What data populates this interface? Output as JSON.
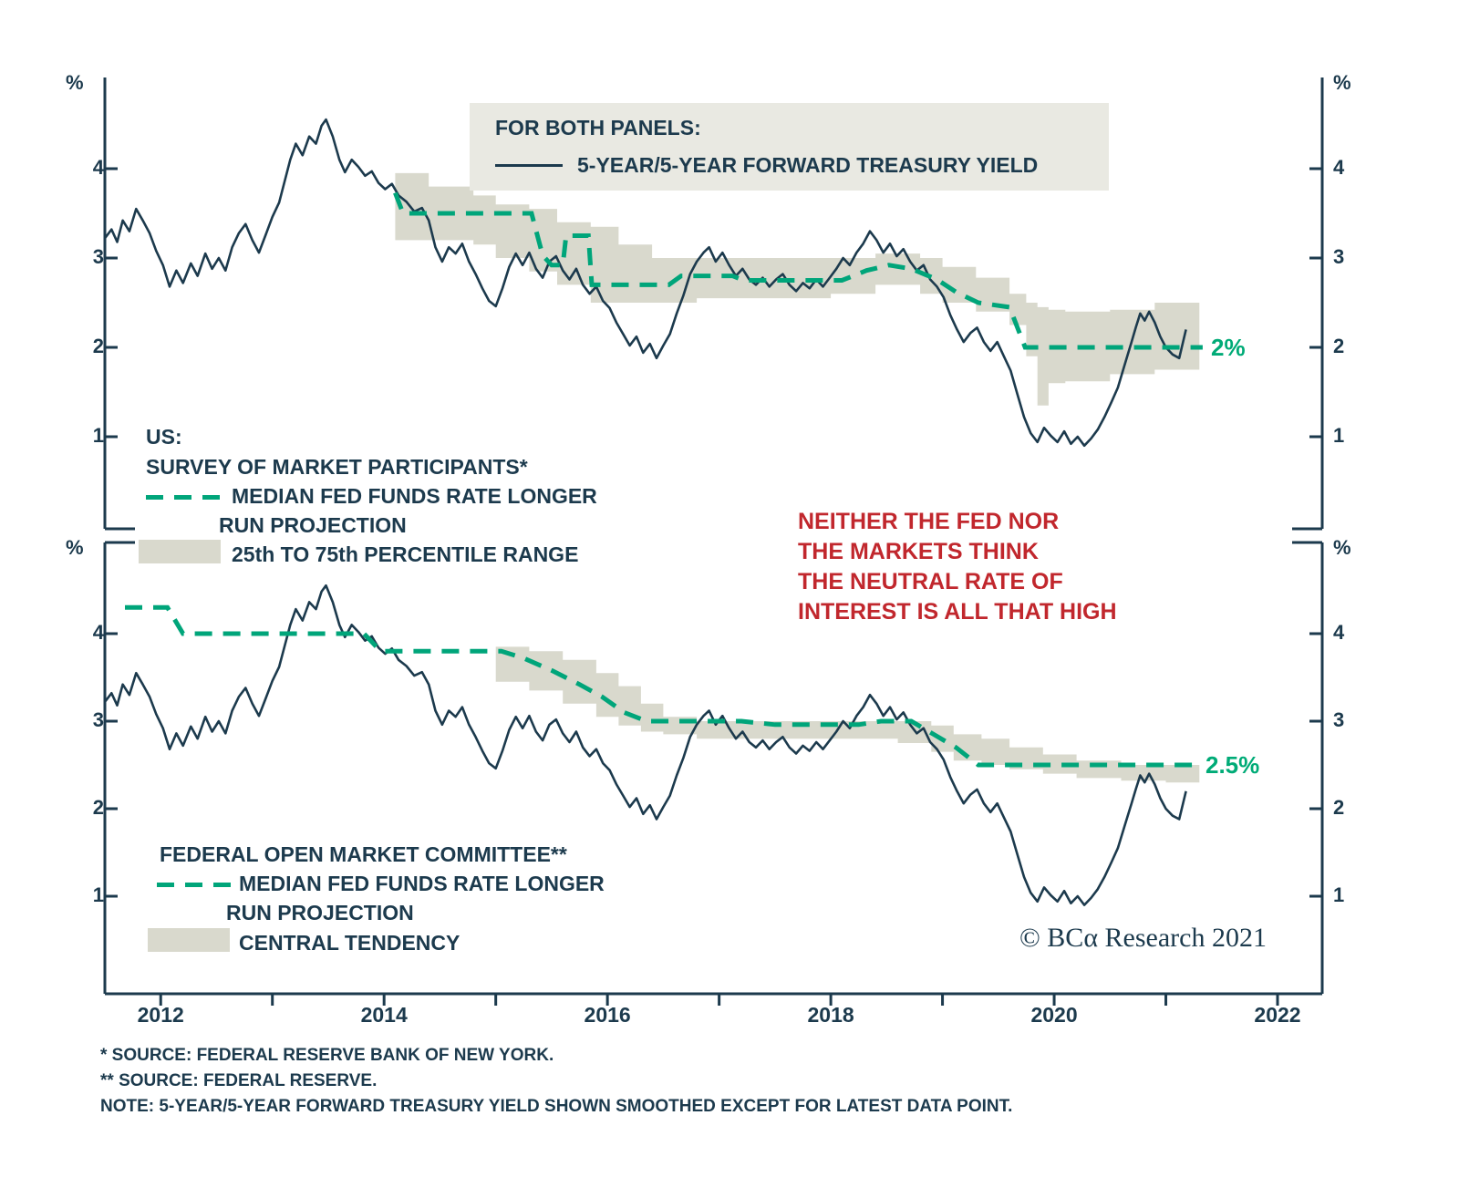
{
  "colors": {
    "navy": "#1c3a4d",
    "green": "#00a57a",
    "green_label": "#00ab77",
    "band": "#d9d9cd",
    "red": "#c1272d",
    "legend_bg": "#e9e9e2"
  },
  "legend_box": {
    "title": "FOR BOTH PANELS:",
    "series_label": "5-YEAR/5-YEAR FORWARD TREASURY YIELD"
  },
  "top_panel": {
    "legend": {
      "region": "US:",
      "survey": "SURVEY OF MARKET PARTICIPANTS*",
      "median_line1": "MEDIAN FED FUNDS RATE LONGER",
      "median_line2": "RUN PROJECTION",
      "band_label": "25th TO 75th PERCENTILE RANGE"
    },
    "end_label": "2%"
  },
  "bottom_panel": {
    "legend": {
      "committee": "FEDERAL OPEN MARKET COMMITTEE**",
      "median_line1": "MEDIAN FED FUNDS RATE LONGER",
      "median_line2": "RUN PROJECTION",
      "band_label": "CENTRAL TENDENCY"
    },
    "end_label": "2.5%"
  },
  "annotation": {
    "lines": [
      "NEITHER THE FED NOR",
      "THE MARKETS THINK",
      "THE NEUTRAL RATE OF",
      "INTEREST IS ALL THAT HIGH"
    ]
  },
  "copyright": {
    "text": "© BCα Research 2021"
  },
  "footnotes": [
    "*  SOURCE: FEDERAL RESERVE BANK OF NEW YORK.",
    "** SOURCE: FEDERAL RESERVE.",
    "NOTE: 5-YEAR/5-YEAR FORWARD TREASURY YIELD SHOWN SMOOTHED EXCEPT FOR LATEST DATA POINT."
  ],
  "axes": {
    "y_unit": "%",
    "y_ticks": [
      4,
      3,
      2,
      1
    ],
    "x_labels": [
      "2012",
      "2014",
      "2016",
      "2018",
      "2020",
      "2022"
    ]
  },
  "chart_data": {
    "type": "line",
    "x_unit": "year",
    "xlim": [
      2011.5,
      2022.4
    ],
    "ylim": [
      0,
      5
    ],
    "grid": false,
    "shared_series": {
      "name": "5-YEAR/5-YEAR FORWARD TREASURY YIELD",
      "style": "solid",
      "color_key": "navy",
      "points": [
        [
          2011.5,
          3.22
        ],
        [
          2011.56,
          3.32
        ],
        [
          2011.61,
          3.18
        ],
        [
          2011.66,
          3.42
        ],
        [
          2011.72,
          3.3
        ],
        [
          2011.78,
          3.55
        ],
        [
          2011.84,
          3.42
        ],
        [
          2011.9,
          3.28
        ],
        [
          2011.96,
          3.08
        ],
        [
          2012.02,
          2.92
        ],
        [
          2012.08,
          2.68
        ],
        [
          2012.14,
          2.86
        ],
        [
          2012.2,
          2.72
        ],
        [
          2012.27,
          2.94
        ],
        [
          2012.33,
          2.8
        ],
        [
          2012.4,
          3.05
        ],
        [
          2012.46,
          2.88
        ],
        [
          2012.52,
          3.0
        ],
        [
          2012.58,
          2.86
        ],
        [
          2012.64,
          3.12
        ],
        [
          2012.7,
          3.28
        ],
        [
          2012.76,
          3.38
        ],
        [
          2012.82,
          3.2
        ],
        [
          2012.88,
          3.06
        ],
        [
          2012.94,
          3.26
        ],
        [
          2013.0,
          3.46
        ],
        [
          2013.06,
          3.62
        ],
        [
          2013.11,
          3.86
        ],
        [
          2013.16,
          4.1
        ],
        [
          2013.21,
          4.28
        ],
        [
          2013.27,
          4.15
        ],
        [
          2013.33,
          4.36
        ],
        [
          2013.39,
          4.28
        ],
        [
          2013.44,
          4.48
        ],
        [
          2013.48,
          4.55
        ],
        [
          2013.54,
          4.36
        ],
        [
          2013.6,
          4.1
        ],
        [
          2013.65,
          3.96
        ],
        [
          2013.71,
          4.1
        ],
        [
          2013.77,
          4.02
        ],
        [
          2013.83,
          3.92
        ],
        [
          2013.89,
          3.97
        ],
        [
          2013.95,
          3.84
        ],
        [
          2014.01,
          3.77
        ],
        [
          2014.07,
          3.83
        ],
        [
          2014.13,
          3.7
        ],
        [
          2014.2,
          3.63
        ],
        [
          2014.27,
          3.52
        ],
        [
          2014.34,
          3.56
        ],
        [
          2014.4,
          3.42
        ],
        [
          2014.46,
          3.12
        ],
        [
          2014.52,
          2.96
        ],
        [
          2014.58,
          3.12
        ],
        [
          2014.64,
          3.05
        ],
        [
          2014.7,
          3.16
        ],
        [
          2014.76,
          2.96
        ],
        [
          2014.82,
          2.82
        ],
        [
          2014.88,
          2.66
        ],
        [
          2014.94,
          2.52
        ],
        [
          2015.0,
          2.46
        ],
        [
          2015.06,
          2.66
        ],
        [
          2015.12,
          2.9
        ],
        [
          2015.18,
          3.05
        ],
        [
          2015.24,
          2.92
        ],
        [
          2015.3,
          3.06
        ],
        [
          2015.36,
          2.88
        ],
        [
          2015.42,
          2.78
        ],
        [
          2015.48,
          2.96
        ],
        [
          2015.54,
          3.02
        ],
        [
          2015.6,
          2.86
        ],
        [
          2015.66,
          2.76
        ],
        [
          2015.72,
          2.88
        ],
        [
          2015.78,
          2.7
        ],
        [
          2015.84,
          2.6
        ],
        [
          2015.9,
          2.68
        ],
        [
          2015.96,
          2.52
        ],
        [
          2016.02,
          2.44
        ],
        [
          2016.08,
          2.28
        ],
        [
          2016.14,
          2.15
        ],
        [
          2016.2,
          2.02
        ],
        [
          2016.26,
          2.12
        ],
        [
          2016.32,
          1.94
        ],
        [
          2016.38,
          2.04
        ],
        [
          2016.44,
          1.88
        ],
        [
          2016.5,
          2.02
        ],
        [
          2016.56,
          2.15
        ],
        [
          2016.62,
          2.38
        ],
        [
          2016.68,
          2.58
        ],
        [
          2016.74,
          2.82
        ],
        [
          2016.8,
          2.96
        ],
        [
          2016.86,
          3.06
        ],
        [
          2016.91,
          3.12
        ],
        [
          2016.97,
          2.96
        ],
        [
          2017.03,
          3.06
        ],
        [
          2017.09,
          2.92
        ],
        [
          2017.15,
          2.8
        ],
        [
          2017.21,
          2.88
        ],
        [
          2017.27,
          2.76
        ],
        [
          2017.33,
          2.7
        ],
        [
          2017.39,
          2.78
        ],
        [
          2017.45,
          2.68
        ],
        [
          2017.51,
          2.76
        ],
        [
          2017.57,
          2.82
        ],
        [
          2017.63,
          2.7
        ],
        [
          2017.69,
          2.63
        ],
        [
          2017.75,
          2.72
        ],
        [
          2017.81,
          2.66
        ],
        [
          2017.87,
          2.76
        ],
        [
          2017.93,
          2.68
        ],
        [
          2017.99,
          2.78
        ],
        [
          2018.05,
          2.88
        ],
        [
          2018.11,
          3.0
        ],
        [
          2018.17,
          2.92
        ],
        [
          2018.23,
          3.06
        ],
        [
          2018.29,
          3.16
        ],
        [
          2018.35,
          3.3
        ],
        [
          2018.41,
          3.2
        ],
        [
          2018.47,
          3.06
        ],
        [
          2018.53,
          3.16
        ],
        [
          2018.59,
          3.02
        ],
        [
          2018.65,
          3.1
        ],
        [
          2018.71,
          2.96
        ],
        [
          2018.77,
          2.86
        ],
        [
          2018.83,
          2.92
        ],
        [
          2018.89,
          2.76
        ],
        [
          2018.95,
          2.68
        ],
        [
          2019.01,
          2.56
        ],
        [
          2019.07,
          2.36
        ],
        [
          2019.13,
          2.2
        ],
        [
          2019.19,
          2.06
        ],
        [
          2019.25,
          2.16
        ],
        [
          2019.31,
          2.22
        ],
        [
          2019.37,
          2.06
        ],
        [
          2019.43,
          1.96
        ],
        [
          2019.49,
          2.06
        ],
        [
          2019.55,
          1.9
        ],
        [
          2019.61,
          1.74
        ],
        [
          2019.67,
          1.48
        ],
        [
          2019.73,
          1.22
        ],
        [
          2019.79,
          1.04
        ],
        [
          2019.85,
          0.94
        ],
        [
          2019.91,
          1.1
        ],
        [
          2019.97,
          1.01
        ],
        [
          2020.03,
          0.94
        ],
        [
          2020.09,
          1.06
        ],
        [
          2020.15,
          0.92
        ],
        [
          2020.21,
          1.0
        ],
        [
          2020.27,
          0.9
        ],
        [
          2020.33,
          0.98
        ],
        [
          2020.39,
          1.08
        ],
        [
          2020.45,
          1.22
        ],
        [
          2020.51,
          1.38
        ],
        [
          2020.57,
          1.55
        ],
        [
          2020.63,
          1.8
        ],
        [
          2020.69,
          2.05
        ],
        [
          2020.73,
          2.22
        ],
        [
          2020.77,
          2.38
        ],
        [
          2020.81,
          2.3
        ],
        [
          2020.85,
          2.4
        ],
        [
          2020.9,
          2.28
        ],
        [
          2020.95,
          2.12
        ],
        [
          2021.0,
          2.0
        ],
        [
          2021.06,
          1.92
        ],
        [
          2021.12,
          1.88
        ],
        [
          2021.18,
          2.2
        ]
      ]
    },
    "panels": [
      {
        "name": "top",
        "median_series": {
          "name": "SURVEY OF MARKET PARTICIPANTS MEDIAN FED FUNDS RATE LONGER RUN PROJECTION",
          "style": "dashed",
          "color_key": "green",
          "end_label": "2%",
          "points": [
            [
              2014.1,
              3.73
            ],
            [
              2014.17,
              3.5
            ],
            [
              2015.32,
              3.5
            ],
            [
              2015.42,
              3.03
            ],
            [
              2015.5,
              2.92
            ],
            [
              2015.6,
              2.92
            ],
            [
              2015.63,
              3.25
            ],
            [
              2015.83,
              3.25
            ],
            [
              2015.86,
              2.7
            ],
            [
              2016.55,
              2.7
            ],
            [
              2016.66,
              2.8
            ],
            [
              2017.12,
              2.8
            ],
            [
              2017.22,
              2.75
            ],
            [
              2018.1,
              2.75
            ],
            [
              2018.32,
              2.86
            ],
            [
              2018.52,
              2.92
            ],
            [
              2018.72,
              2.88
            ],
            [
              2018.95,
              2.76
            ],
            [
              2019.12,
              2.62
            ],
            [
              2019.32,
              2.5
            ],
            [
              2019.6,
              2.45
            ],
            [
              2019.74,
              2.0
            ],
            [
              2021.33,
              2.0
            ]
          ]
        },
        "band": {
          "name": "25th TO 75th PERCENTILE RANGE",
          "points_x_lo_hi": [
            [
              2014.1,
              3.2,
              3.95
            ],
            [
              2014.4,
              3.2,
              3.8
            ],
            [
              2014.8,
              3.15,
              3.7
            ],
            [
              2015.0,
              3.0,
              3.6
            ],
            [
              2015.3,
              2.85,
              3.55
            ],
            [
              2015.55,
              2.7,
              3.4
            ],
            [
              2015.85,
              2.5,
              3.35
            ],
            [
              2016.1,
              2.5,
              3.15
            ],
            [
              2016.4,
              2.5,
              3.0
            ],
            [
              2016.8,
              2.55,
              3.0
            ],
            [
              2017.4,
              2.55,
              3.0
            ],
            [
              2018.0,
              2.6,
              3.0
            ],
            [
              2018.4,
              2.7,
              3.05
            ],
            [
              2018.8,
              2.6,
              3.0
            ],
            [
              2019.0,
              2.5,
              2.9
            ],
            [
              2019.3,
              2.4,
              2.78
            ],
            [
              2019.6,
              2.25,
              2.6
            ],
            [
              2019.75,
              1.9,
              2.5
            ],
            [
              2019.85,
              1.35,
              2.45
            ],
            [
              2019.95,
              1.6,
              2.42
            ],
            [
              2020.1,
              1.62,
              2.4
            ],
            [
              2020.5,
              1.7,
              2.42
            ],
            [
              2020.9,
              1.75,
              2.5
            ],
            [
              2021.3,
              1.78,
              2.52
            ]
          ]
        }
      },
      {
        "name": "bottom",
        "median_series": {
          "name": "FOMC MEDIAN FED FUNDS RATE LONGER RUN PROJECTION",
          "style": "dashed",
          "color_key": "green",
          "end_label": "2.5%",
          "points": [
            [
              2011.68,
              4.3
            ],
            [
              2012.06,
              4.3
            ],
            [
              2012.2,
              4.0
            ],
            [
              2013.82,
              4.0
            ],
            [
              2013.97,
              3.8
            ],
            [
              2015.05,
              3.8
            ],
            [
              2015.25,
              3.72
            ],
            [
              2015.5,
              3.58
            ],
            [
              2015.75,
              3.42
            ],
            [
              2015.95,
              3.28
            ],
            [
              2016.15,
              3.1
            ],
            [
              2016.35,
              3.0
            ],
            [
              2017.2,
              3.0
            ],
            [
              2017.5,
              2.96
            ],
            [
              2018.25,
              2.96
            ],
            [
              2018.45,
              3.0
            ],
            [
              2018.72,
              3.0
            ],
            [
              2018.92,
              2.85
            ],
            [
              2019.12,
              2.7
            ],
            [
              2019.32,
              2.5
            ],
            [
              2021.33,
              2.5
            ]
          ]
        },
        "band": {
          "name": "CENTRAL TENDENCY",
          "points_x_lo_hi": [
            [
              2015.0,
              3.45,
              3.85
            ],
            [
              2015.3,
              3.35,
              3.8
            ],
            [
              2015.6,
              3.2,
              3.7
            ],
            [
              2015.9,
              3.05,
              3.55
            ],
            [
              2016.1,
              2.95,
              3.4
            ],
            [
              2016.3,
              2.88,
              3.2
            ],
            [
              2016.5,
              2.85,
              3.05
            ],
            [
              2016.8,
              2.8,
              3.0
            ],
            [
              2017.5,
              2.8,
              3.0
            ],
            [
              2018.2,
              2.8,
              3.0
            ],
            [
              2018.6,
              2.75,
              3.0
            ],
            [
              2018.9,
              2.65,
              2.95
            ],
            [
              2019.1,
              2.55,
              2.85
            ],
            [
              2019.35,
              2.5,
              2.8
            ],
            [
              2019.6,
              2.45,
              2.7
            ],
            [
              2019.9,
              2.4,
              2.62
            ],
            [
              2020.2,
              2.35,
              2.55
            ],
            [
              2020.6,
              2.32,
              2.5
            ],
            [
              2021.0,
              2.3,
              2.5
            ],
            [
              2021.3,
              2.3,
              2.5
            ]
          ]
        }
      }
    ]
  }
}
